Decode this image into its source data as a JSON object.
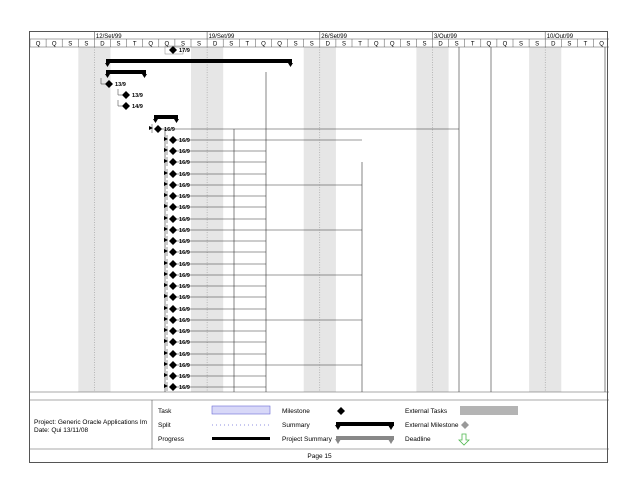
{
  "timeline": {
    "weeks": [
      "12/Set/99",
      "19/Set/99",
      "26/Set/99",
      "3/Out/99",
      "10/Out/99"
    ],
    "days": [
      "Q",
      "Q",
      "S",
      "S",
      "D",
      "S",
      "T",
      "Q",
      "Q",
      "S",
      "S",
      "D",
      "S",
      "T",
      "Q",
      "Q",
      "S",
      "S",
      "D",
      "S",
      "T",
      "Q",
      "Q",
      "S",
      "S",
      "D",
      "S",
      "T",
      "Q",
      "Q",
      "S",
      "S",
      "D",
      "S",
      "T",
      "Q",
      "Q",
      "S",
      "S",
      "D",
      "S",
      "T",
      "Q"
    ]
  },
  "rows": [
    {
      "type": "milestone",
      "label": "17/9"
    },
    {
      "type": "summary"
    },
    {
      "type": "summary"
    },
    {
      "type": "milestone",
      "label": "13/9"
    },
    {
      "type": "milestone",
      "label": "13/9"
    },
    {
      "type": "milestone",
      "label": "14/9"
    },
    {
      "type": "summary"
    },
    {
      "type": "milestone",
      "label": "16/9"
    },
    {
      "type": "milestone",
      "label": "16/9"
    },
    {
      "type": "milestone",
      "label": "16/9"
    },
    {
      "type": "milestone",
      "label": "16/9"
    },
    {
      "type": "milestone",
      "label": "16/9"
    },
    {
      "type": "milestone",
      "label": "16/9"
    },
    {
      "type": "milestone",
      "label": "16/9"
    },
    {
      "type": "milestone",
      "label": "16/9"
    },
    {
      "type": "milestone",
      "label": "16/9"
    },
    {
      "type": "milestone",
      "label": "16/9"
    },
    {
      "type": "milestone",
      "label": "16/9"
    },
    {
      "type": "milestone",
      "label": "16/9"
    },
    {
      "type": "milestone",
      "label": "16/9"
    },
    {
      "type": "milestone",
      "label": "16/9"
    },
    {
      "type": "milestone",
      "label": "16/9"
    },
    {
      "type": "milestone",
      "label": "16/9"
    },
    {
      "type": "milestone",
      "label": "16/9"
    },
    {
      "type": "milestone",
      "label": "16/9"
    },
    {
      "type": "milestone",
      "label": "16/9"
    },
    {
      "type": "milestone",
      "label": "16/9"
    },
    {
      "type": "milestone",
      "label": "16/9"
    },
    {
      "type": "milestone",
      "label": "16/9"
    },
    {
      "type": "milestone",
      "label": "16/9"
    },
    {
      "type": "milestone",
      "label": "16/9"
    }
  ],
  "footer": {
    "project_line": "Project: Generic Oracle Applications Im",
    "date_line": "Date: Qui 13/11/08",
    "page": "Page 15"
  },
  "legend": {
    "task": "Task",
    "split": "Split",
    "progress": "Progress",
    "milestone": "Milestone",
    "summary": "Summary",
    "project_summary": "Project Summary",
    "external_tasks": "External Tasks",
    "external_milestone": "External Milestone",
    "deadline": "Deadline"
  },
  "colors": {
    "weekend": "#e6e6e6",
    "task_fill": "#d8d8f8",
    "task_border": "#6b6bd6",
    "external": "#b4b4b4",
    "deadline": "#4fb84f"
  }
}
